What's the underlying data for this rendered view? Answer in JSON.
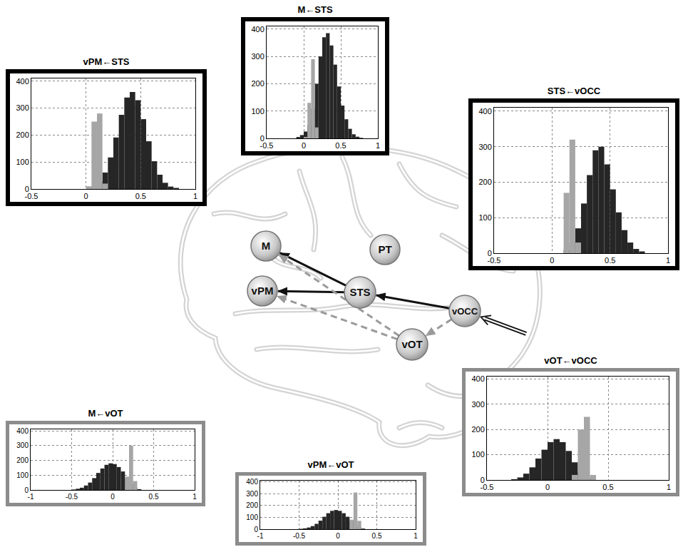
{
  "chart_data": [
    {
      "type": "histogram",
      "title": "vPM←STS",
      "color": "#000000",
      "bins": [
        -0.5,
        -0.45,
        -0.4,
        -0.35,
        -0.3,
        -0.25,
        -0.2,
        -0.15,
        -0.1,
        -0.05,
        0,
        0.05,
        0.1,
        0.15,
        0.2,
        0.25,
        0.3,
        0.35,
        0.4,
        0.45,
        0.5,
        0.55,
        0.6,
        0.65,
        0.7,
        0.75,
        0.8,
        0.85,
        0.9,
        0.95,
        1
      ],
      "series": [
        {
          "color": "#262626",
          "values": [
            0,
            0,
            0,
            0,
            0,
            0,
            0,
            0,
            0,
            0,
            0,
            8,
            27,
            61,
            117,
            191,
            275,
            339,
            360,
            329,
            259,
            177,
            103,
            53,
            23,
            9,
            4,
            0,
            0,
            0
          ]
        },
        {
          "color": "#a6a6a6",
          "values": [
            0,
            0,
            0,
            0,
            0,
            0,
            0,
            0,
            0,
            0,
            10,
            250,
            280,
            20,
            0,
            0,
            0,
            0,
            0,
            0,
            0,
            0,
            0,
            0,
            0,
            0,
            0,
            0,
            0,
            0
          ]
        }
      ],
      "xlim": [
        -0.5,
        1
      ],
      "xticks": [
        -0.5,
        0,
        0.5,
        1
      ],
      "ylim": [
        0,
        410
      ],
      "yticks": [
        0,
        100,
        200,
        300,
        400
      ],
      "grid": true
    },
    {
      "type": "histogram",
      "title": "M←STS",
      "color": "#000000",
      "bins": [
        -0.5,
        -0.45,
        -0.4,
        -0.35,
        -0.3,
        -0.25,
        -0.2,
        -0.15,
        -0.1,
        -0.05,
        0,
        0.05,
        0.1,
        0.15,
        0.2,
        0.25,
        0.3,
        0.35,
        0.4,
        0.45,
        0.5,
        0.55,
        0.6,
        0.65,
        0.7,
        0.75,
        0.8,
        0.85,
        0.9,
        0.95,
        1
      ],
      "series": [
        {
          "color": "#262626",
          "values": [
            0,
            0,
            0,
            0,
            0,
            0,
            0,
            0,
            5,
            12,
            25,
            50,
            110,
            200,
            300,
            370,
            385,
            340,
            270,
            190,
            120,
            70,
            35,
            15,
            6,
            2,
            0,
            0,
            0,
            0
          ]
        },
        {
          "color": "#a6a6a6",
          "values": [
            0,
            0,
            0,
            0,
            0,
            0,
            0,
            0,
            0,
            0,
            5,
            130,
            290,
            40,
            0,
            0,
            0,
            0,
            0,
            0,
            0,
            0,
            0,
            0,
            0,
            0,
            0,
            0,
            0,
            0
          ]
        }
      ],
      "xlim": [
        -0.5,
        1
      ],
      "xticks": [
        -0.5,
        0,
        0.5,
        1
      ],
      "ylim": [
        0,
        410
      ],
      "yticks": [
        0,
        100,
        200,
        300,
        400
      ],
      "grid": true
    },
    {
      "type": "histogram",
      "title": "STS←vOCC",
      "color": "#000000",
      "bins": [
        -0.5,
        -0.45,
        -0.4,
        -0.35,
        -0.3,
        -0.25,
        -0.2,
        -0.15,
        -0.1,
        -0.05,
        0,
        0.05,
        0.1,
        0.15,
        0.2,
        0.25,
        0.3,
        0.35,
        0.4,
        0.45,
        0.5,
        0.55,
        0.6,
        0.65,
        0.7,
        0.75,
        0.8,
        0.85,
        0.9,
        0.95,
        1
      ],
      "series": [
        {
          "color": "#262626",
          "values": [
            0,
            0,
            0,
            0,
            0,
            0,
            0,
            0,
            0,
            0,
            0,
            0,
            10,
            30,
            70,
            140,
            220,
            290,
            300,
            250,
            180,
            115,
            65,
            30,
            12,
            5,
            0,
            0,
            0,
            0
          ]
        },
        {
          "color": "#a6a6a6",
          "values": [
            0,
            0,
            0,
            0,
            0,
            0,
            0,
            0,
            0,
            0,
            0,
            0,
            170,
            320,
            30,
            0,
            0,
            0,
            0,
            0,
            0,
            0,
            0,
            0,
            0,
            0,
            0,
            0,
            0,
            0
          ]
        }
      ],
      "xlim": [
        -0.5,
        1
      ],
      "xticks": [
        -0.5,
        0,
        0.5,
        1
      ],
      "ylim": [
        0,
        410
      ],
      "yticks": [
        0,
        100,
        200,
        300,
        400
      ],
      "grid": true
    },
    {
      "type": "histogram",
      "title": "M←vOT",
      "color": "#8c8c8c",
      "bins": [
        -1,
        -0.95,
        -0.9,
        -0.85,
        -0.8,
        -0.75,
        -0.7,
        -0.65,
        -0.6,
        -0.55,
        -0.5,
        -0.45,
        -0.4,
        -0.35,
        -0.3,
        -0.25,
        -0.2,
        -0.15,
        -0.1,
        -0.05,
        0,
        0.05,
        0.1,
        0.15,
        0.2,
        0.25,
        0.3,
        0.35,
        0.4,
        0.45,
        0.5,
        0.55,
        0.6,
        0.65,
        0.7,
        0.75,
        0.8,
        0.85,
        0.9,
        0.95,
        1
      ],
      "series": [
        {
          "color": "#262626",
          "values": [
            0,
            0,
            0,
            0,
            0,
            0,
            0,
            0,
            0,
            0,
            3,
            8,
            15,
            30,
            50,
            80,
            115,
            145,
            170,
            180,
            175,
            155,
            125,
            80,
            40,
            15,
            5,
            0,
            0,
            0,
            0,
            0,
            0,
            0,
            0,
            0,
            0,
            0,
            0,
            0
          ]
        },
        {
          "color": "#a6a6a6",
          "values": [
            0,
            0,
            0,
            0,
            0,
            0,
            0,
            0,
            0,
            0,
            0,
            0,
            0,
            0,
            0,
            0,
            0,
            0,
            0,
            0,
            0,
            0,
            0,
            90,
            300,
            60,
            0,
            0,
            0,
            0,
            0,
            0,
            0,
            0,
            0,
            0,
            0,
            0,
            0,
            0
          ]
        }
      ],
      "xlim": [
        -1,
        1
      ],
      "xticks": [
        -1,
        -0.5,
        0,
        0.5,
        1
      ],
      "ylim": [
        0,
        410
      ],
      "yticks": [
        0,
        100,
        200,
        300,
        400
      ],
      "grid": true
    },
    {
      "type": "histogram",
      "title": "vPM←vOT",
      "color": "#8c8c8c",
      "bins": [
        -1,
        -0.95,
        -0.9,
        -0.85,
        -0.8,
        -0.75,
        -0.7,
        -0.65,
        -0.6,
        -0.55,
        -0.5,
        -0.45,
        -0.4,
        -0.35,
        -0.3,
        -0.25,
        -0.2,
        -0.15,
        -0.1,
        -0.05,
        0,
        0.05,
        0.1,
        0.15,
        0.2,
        0.25,
        0.3,
        0.35,
        0.4,
        0.45,
        0.5,
        0.55,
        0.6,
        0.65,
        0.7,
        0.75,
        0.8,
        0.85,
        0.9,
        0.95,
        1
      ],
      "series": [
        {
          "color": "#262626",
          "values": [
            0,
            0,
            0,
            0,
            0,
            0,
            0,
            0,
            0,
            0,
            3,
            7,
            14,
            26,
            45,
            72,
            105,
            135,
            155,
            162,
            155,
            135,
            105,
            70,
            38,
            15,
            5,
            0,
            0,
            0,
            0,
            0,
            0,
            0,
            0,
            0,
            0,
            0,
            0,
            0
          ]
        },
        {
          "color": "#a6a6a6",
          "values": [
            0,
            0,
            0,
            0,
            0,
            0,
            0,
            0,
            0,
            0,
            0,
            0,
            0,
            0,
            0,
            0,
            0,
            0,
            0,
            0,
            0,
            0,
            0,
            80,
            310,
            70,
            0,
            0,
            0,
            0,
            0,
            0,
            0,
            0,
            0,
            0,
            0,
            0,
            0,
            0
          ]
        }
      ],
      "xlim": [
        -1,
        1
      ],
      "xticks": [
        -1,
        -0.5,
        0,
        0.5,
        1
      ],
      "ylim": [
        0,
        410
      ],
      "yticks": [
        0,
        100,
        200,
        300,
        400
      ],
      "grid": true
    },
    {
      "type": "histogram",
      "title": "vOT←vOCC",
      "color": "#8c8c8c",
      "bins": [
        -0.5,
        -0.45,
        -0.4,
        -0.35,
        -0.3,
        -0.25,
        -0.2,
        -0.15,
        -0.1,
        -0.05,
        0,
        0.05,
        0.1,
        0.15,
        0.2,
        0.25,
        0.3,
        0.35,
        0.4,
        0.45,
        0.5,
        0.55,
        0.6,
        0.65,
        0.7,
        0.75,
        0.8,
        0.85,
        0.9,
        0.95,
        1
      ],
      "series": [
        {
          "color": "#262626",
          "values": [
            0,
            0,
            0,
            0,
            3,
            10,
            25,
            50,
            85,
            120,
            150,
            162,
            150,
            115,
            70,
            30,
            10,
            3,
            0,
            0,
            0,
            0,
            0,
            0,
            0,
            0,
            0,
            0,
            0,
            0
          ]
        },
        {
          "color": "#a6a6a6",
          "values": [
            0,
            0,
            0,
            0,
            0,
            0,
            0,
            0,
            0,
            0,
            0,
            0,
            0,
            0,
            20,
            200,
            250,
            20,
            0,
            0,
            0,
            0,
            0,
            0,
            0,
            0,
            0,
            0,
            0,
            0
          ]
        }
      ],
      "xlim": [
        -0.5,
        1
      ],
      "xticks": [
        -0.5,
        0,
        0.5,
        1
      ],
      "ylim": [
        0,
        410
      ],
      "yticks": [
        0,
        100,
        200,
        300,
        400
      ],
      "grid": true
    }
  ],
  "diagram": {
    "nodes": [
      {
        "label": "M"
      },
      {
        "label": "PT"
      },
      {
        "label": "vPM"
      },
      {
        "label": "STS"
      },
      {
        "label": "vOCC"
      },
      {
        "label": "vOT"
      }
    ],
    "edges": [
      {
        "from": "STS",
        "to": "M",
        "line_style": "solid"
      },
      {
        "from": "STS",
        "to": "vPM",
        "line_style": "solid"
      },
      {
        "from": "vOCC",
        "to": "STS",
        "line_style": "solid"
      },
      {
        "from": "vOCC",
        "to": "vOT",
        "line_style": "dashed"
      },
      {
        "from": "vOT",
        "to": "M",
        "line_style": "dashed"
      },
      {
        "from": "vOT",
        "to": "vPM",
        "line_style": "dashed"
      }
    ]
  }
}
